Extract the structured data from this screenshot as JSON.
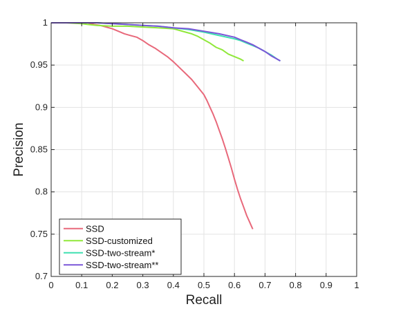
{
  "chart_data": {
    "type": "line",
    "xlabel": "Recall",
    "ylabel": "Precision",
    "xlim": [
      0,
      1
    ],
    "ylim": [
      0.7,
      1
    ],
    "x_ticks": [
      0,
      0.1,
      0.2,
      0.3,
      0.4,
      0.5,
      0.6,
      0.7,
      0.8,
      0.9,
      1
    ],
    "x_tick_labels": [
      "0",
      "0.1",
      "0.2",
      "0.3",
      "0.4",
      "0.5",
      "0.6",
      "0.7",
      "0.8",
      "0.9",
      "1"
    ],
    "y_ticks": [
      0.7,
      0.75,
      0.8,
      0.85,
      0.9,
      0.95,
      1
    ],
    "y_tick_labels": [
      "0.7",
      "0.75",
      "0.8",
      "0.85",
      "0.9",
      "0.95",
      "1"
    ],
    "grid": true,
    "legend_position": "bottom-left",
    "series": [
      {
        "name": "SSD",
        "color": "#e8687a",
        "x": [
          0,
          0.05,
          0.1,
          0.12,
          0.14,
          0.16,
          0.18,
          0.2,
          0.22,
          0.24,
          0.26,
          0.28,
          0.3,
          0.32,
          0.34,
          0.36,
          0.38,
          0.4,
          0.42,
          0.44,
          0.46,
          0.48,
          0.5,
          0.51,
          0.52,
          0.53,
          0.54,
          0.55,
          0.56,
          0.57,
          0.58,
          0.59,
          0.6,
          0.61,
          0.62,
          0.63,
          0.64,
          0.65,
          0.656,
          0.66
        ],
        "y": [
          1,
          1,
          1,
          1,
          0.998,
          0.997,
          0.995,
          0.993,
          0.99,
          0.987,
          0.985,
          0.983,
          0.979,
          0.974,
          0.97,
          0.965,
          0.96,
          0.954,
          0.947,
          0.94,
          0.933,
          0.924,
          0.915,
          0.908,
          0.9,
          0.892,
          0.883,
          0.873,
          0.863,
          0.852,
          0.84,
          0.828,
          0.815,
          0.803,
          0.792,
          0.782,
          0.772,
          0.764,
          0.759,
          0.756
        ]
      },
      {
        "name": "SSD-customized",
        "color": "#90e83a",
        "x": [
          0,
          0.05,
          0.1,
          0.12,
          0.15,
          0.2,
          0.25,
          0.3,
          0.35,
          0.4,
          0.42,
          0.44,
          0.46,
          0.48,
          0.5,
          0.52,
          0.54,
          0.56,
          0.58,
          0.6,
          0.62,
          0.63
        ],
        "y": [
          1,
          1,
          0.999,
          0.998,
          0.997,
          0.996,
          0.996,
          0.995,
          0.994,
          0.993,
          0.991,
          0.989,
          0.987,
          0.984,
          0.98,
          0.976,
          0.971,
          0.968,
          0.963,
          0.96,
          0.957,
          0.955
        ]
      },
      {
        "name": "SSD-two-stream*",
        "color": "#3ee0b0",
        "x": [
          0,
          0.1,
          0.15,
          0.2,
          0.25,
          0.3,
          0.35,
          0.4,
          0.45,
          0.5,
          0.55,
          0.6,
          0.62,
          0.64,
          0.66,
          0.68,
          0.7,
          0.72,
          0.74,
          0.75
        ],
        "y": [
          1,
          1,
          1,
          0.999,
          0.998,
          0.997,
          0.996,
          0.994,
          0.992,
          0.989,
          0.985,
          0.981,
          0.979,
          0.976,
          0.973,
          0.97,
          0.966,
          0.962,
          0.957,
          0.955
        ]
      },
      {
        "name": "SSD-two-stream**",
        "color": "#7a56d8",
        "x": [
          0,
          0.1,
          0.15,
          0.2,
          0.25,
          0.3,
          0.35,
          0.4,
          0.45,
          0.5,
          0.55,
          0.6,
          0.62,
          0.64,
          0.66,
          0.68,
          0.7,
          0.72,
          0.74,
          0.75
        ],
        "y": [
          1,
          1,
          1,
          0.999,
          0.998,
          0.997,
          0.996,
          0.994,
          0.993,
          0.99,
          0.987,
          0.983,
          0.98,
          0.977,
          0.974,
          0.97,
          0.966,
          0.961,
          0.957,
          0.955
        ]
      }
    ]
  }
}
